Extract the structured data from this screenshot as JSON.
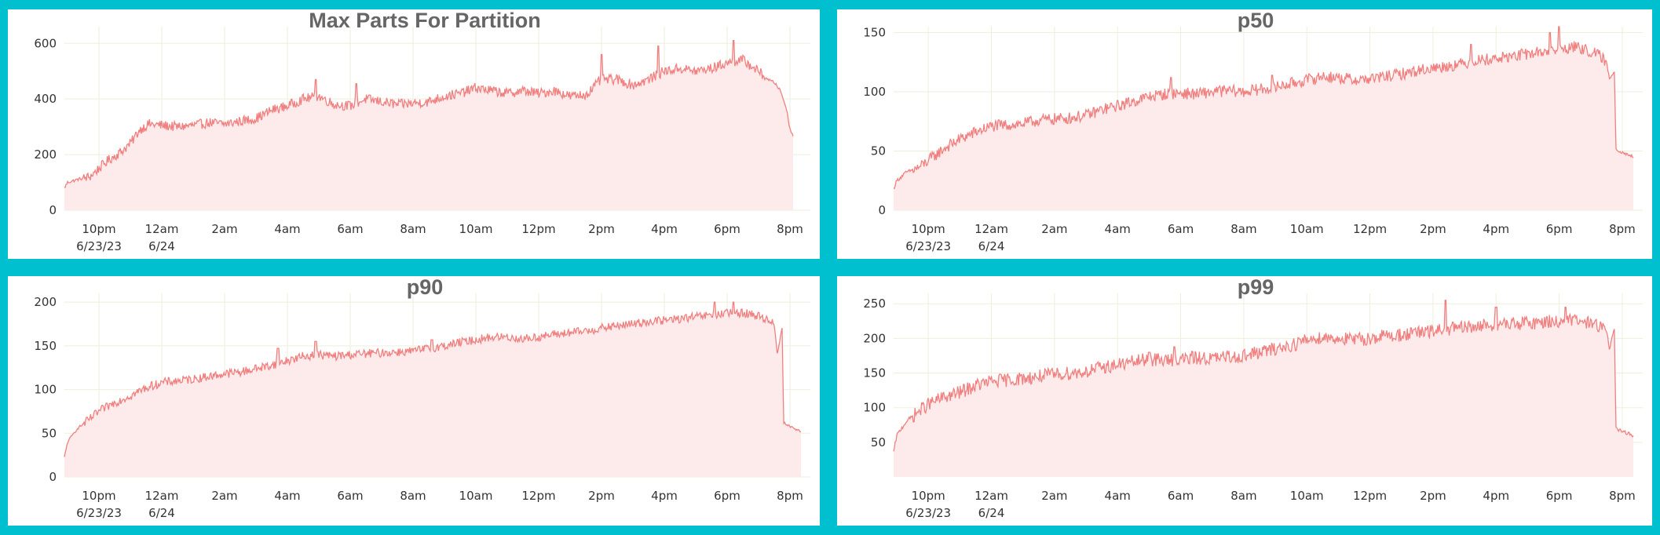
{
  "colors": {
    "background": "#00bfcf",
    "panel": "#ffffff",
    "line": "#f08080",
    "area": "#fdeaea",
    "grid": "#eeeedd"
  },
  "time_axis": {
    "ticks": [
      {
        "hour": 22,
        "label": "10pm",
        "sublabel": "6/23/23"
      },
      {
        "hour": 24,
        "label": "12am",
        "sublabel": "6/24"
      },
      {
        "hour": 26,
        "label": "2am",
        "sublabel": ""
      },
      {
        "hour": 28,
        "label": "4am",
        "sublabel": ""
      },
      {
        "hour": 30,
        "label": "6am",
        "sublabel": ""
      },
      {
        "hour": 32,
        "label": "8am",
        "sublabel": ""
      },
      {
        "hour": 34,
        "label": "10am",
        "sublabel": ""
      },
      {
        "hour": 36,
        "label": "12pm",
        "sublabel": ""
      },
      {
        "hour": 38,
        "label": "2pm",
        "sublabel": ""
      },
      {
        "hour": 40,
        "label": "4pm",
        "sublabel": ""
      },
      {
        "hour": 42,
        "label": "6pm",
        "sublabel": ""
      },
      {
        "hour": 44,
        "label": "8pm",
        "sublabel": ""
      }
    ]
  },
  "chart_data": [
    {
      "type": "area",
      "title": "Max Parts For Partition",
      "xlim": [
        20.9,
        44.35
      ],
      "ylim": [
        0,
        660
      ],
      "yticks": [
        0,
        200,
        400,
        600
      ],
      "series": [
        {
          "x": [
            20.9,
            21.0,
            21.3,
            21.7,
            22.0,
            22.3,
            22.7,
            23.0,
            23.3,
            23.6,
            24.0,
            24.5,
            25.0,
            25.5,
            26.0,
            26.5,
            27.0,
            27.5,
            28.0,
            28.5,
            29.0,
            29.5,
            30.0,
            30.5,
            31.0,
            31.5,
            32.0,
            32.5,
            33.0,
            33.5,
            34.0,
            34.5,
            35.0,
            35.5,
            36.0,
            36.5,
            37.0,
            37.5,
            38.0,
            38.5,
            39.0,
            39.5,
            40.0,
            40.5,
            41.0,
            41.5,
            42.0,
            42.5,
            43.0,
            43.3,
            43.5,
            43.7,
            43.9,
            44.0,
            44.1
          ],
          "y": [
            80,
            100,
            110,
            120,
            150,
            180,
            210,
            240,
            290,
            310,
            305,
            300,
            305,
            315,
            310,
            320,
            330,
            360,
            375,
            400,
            410,
            380,
            375,
            400,
            390,
            380,
            385,
            390,
            410,
            420,
            440,
            430,
            420,
            430,
            420,
            430,
            410,
            415,
            470,
            470,
            450,
            470,
            500,
            510,
            500,
            510,
            530,
            540,
            500,
            470,
            460,
            430,
            360,
            290,
            270
          ],
          "noise": 18,
          "spikes": [
            [
              28.9,
              470
            ],
            [
              30.2,
              455
            ],
            [
              38.0,
              560
            ],
            [
              39.8,
              590
            ],
            [
              42.2,
              610
            ]
          ]
        }
      ]
    },
    {
      "type": "area",
      "title": "p50",
      "xlim": [
        20.9,
        44.35
      ],
      "ylim": [
        0,
        155
      ],
      "yticks": [
        0,
        50,
        100,
        150
      ],
      "series": [
        {
          "x": [
            20.9,
            21.0,
            21.3,
            21.7,
            22.0,
            22.5,
            23.0,
            23.5,
            24.0,
            24.5,
            25.0,
            25.5,
            26.0,
            26.5,
            27.0,
            27.5,
            28.0,
            28.5,
            29.0,
            29.5,
            30.0,
            30.5,
            31.0,
            31.5,
            32.0,
            32.5,
            33.0,
            33.5,
            34.0,
            34.5,
            35.0,
            35.5,
            36.0,
            36.5,
            37.0,
            37.5,
            38.0,
            38.5,
            39.0,
            39.5,
            40.0,
            40.5,
            41.0,
            41.5,
            42.0,
            42.5,
            43.0,
            43.3,
            43.5,
            43.6,
            43.75,
            43.8,
            43.9,
            44.1,
            44.35
          ],
          "y": [
            18,
            25,
            32,
            36,
            42,
            52,
            60,
            66,
            71,
            72,
            73,
            76,
            77,
            78,
            80,
            85,
            88,
            92,
            96,
            98,
            99,
            98,
            100,
            101,
            100,
            102,
            104,
            107,
            110,
            113,
            112,
            110,
            111,
            113,
            115,
            118,
            120,
            122,
            124,
            127,
            128,
            130,
            132,
            134,
            136,
            138,
            134,
            130,
            125,
            110,
            118,
            52,
            50,
            48,
            45
          ],
          "noise": 5,
          "spikes": [
            [
              29.7,
              112
            ],
            [
              32.9,
              114
            ],
            [
              39.2,
              140
            ],
            [
              41.7,
              150
            ],
            [
              42.0,
              155
            ]
          ]
        }
      ]
    },
    {
      "type": "area",
      "title": "p90",
      "xlim": [
        20.9,
        44.35
      ],
      "ylim": [
        0,
        210
      ],
      "yticks": [
        0,
        50,
        100,
        150,
        200
      ],
      "series": [
        {
          "x": [
            20.9,
            21.0,
            21.3,
            21.7,
            22.0,
            22.5,
            23.0,
            23.5,
            24.0,
            24.5,
            25.0,
            25.5,
            26.0,
            26.5,
            27.0,
            27.5,
            28.0,
            28.5,
            29.0,
            29.5,
            30.0,
            30.5,
            31.0,
            31.5,
            32.0,
            32.5,
            33.0,
            33.5,
            34.0,
            34.5,
            35.0,
            35.5,
            36.0,
            36.5,
            37.0,
            37.5,
            38.0,
            38.5,
            39.0,
            39.5,
            40.0,
            40.5,
            41.0,
            41.5,
            42.0,
            42.5,
            43.0,
            43.3,
            43.5,
            43.6,
            43.75,
            43.8,
            43.9,
            44.1,
            44.35
          ],
          "y": [
            22,
            40,
            55,
            66,
            75,
            85,
            93,
            102,
            108,
            110,
            112,
            115,
            118,
            120,
            124,
            128,
            133,
            138,
            140,
            138,
            140,
            141,
            142,
            143,
            144,
            147,
            150,
            154,
            157,
            160,
            160,
            158,
            160,
            163,
            165,
            167,
            170,
            173,
            175,
            178,
            179,
            181,
            183,
            185,
            187,
            188,
            184,
            180,
            175,
            140,
            172,
            62,
            60,
            56,
            52
          ],
          "noise": 5,
          "spikes": [
            [
              27.7,
              147
            ],
            [
              28.9,
              155
            ],
            [
              32.6,
              157
            ],
            [
              41.6,
              200
            ],
            [
              42.2,
              200
            ]
          ]
        }
      ]
    },
    {
      "type": "area",
      "title": "p99",
      "xlim": [
        20.9,
        44.35
      ],
      "ylim": [
        0,
        265
      ],
      "yticks": [
        50,
        100,
        150,
        200,
        250
      ],
      "series": [
        {
          "x": [
            20.9,
            21.0,
            21.3,
            21.7,
            22.0,
            22.5,
            23.0,
            23.5,
            24.0,
            24.5,
            25.0,
            25.5,
            26.0,
            26.5,
            27.0,
            27.5,
            28.0,
            28.5,
            29.0,
            29.5,
            30.0,
            30.5,
            31.0,
            31.5,
            32.0,
            32.5,
            33.0,
            33.5,
            34.0,
            34.5,
            35.0,
            35.5,
            36.0,
            36.5,
            37.0,
            37.5,
            38.0,
            38.5,
            39.0,
            39.5,
            40.0,
            40.5,
            41.0,
            41.5,
            42.0,
            42.5,
            43.0,
            43.3,
            43.5,
            43.6,
            43.75,
            43.8,
            43.9,
            44.1,
            44.35
          ],
          "y": [
            35,
            60,
            80,
            95,
            105,
            115,
            122,
            132,
            138,
            140,
            142,
            145,
            148,
            150,
            152,
            158,
            162,
            166,
            170,
            168,
            170,
            172,
            171,
            173,
            175,
            180,
            185,
            190,
            198,
            202,
            200,
            198,
            200,
            204,
            205,
            208,
            210,
            214,
            215,
            218,
            220,
            221,
            222,
            224,
            225,
            226,
            222,
            218,
            210,
            185,
            215,
            70,
            68,
            64,
            60
          ],
          "noise": 10,
          "spikes": [
            [
              29.0,
              180
            ],
            [
              29.8,
              188
            ],
            [
              38.4,
              255
            ],
            [
              40.0,
              245
            ],
            [
              42.2,
              245
            ]
          ]
        }
      ]
    }
  ]
}
